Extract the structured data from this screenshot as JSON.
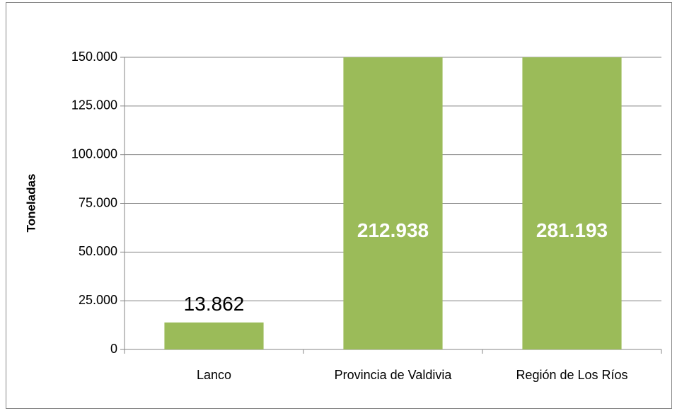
{
  "chart_data": {
    "type": "bar",
    "y_label": "Toneladas",
    "categories": [
      "Lanco",
      "Provincia de Valdivia",
      "Región de Los Ríos"
    ],
    "values": [
      13862,
      212938,
      281193
    ],
    "value_labels": [
      "13.862",
      "212.938",
      "281.193"
    ],
    "color": "#9bbb59",
    "ylim": [
      0,
      150000
    ],
    "yticks": [
      0,
      {
        "value": 25000,
        "label": "25.000"
      },
      {
        "value": 50000,
        "label": "50.000"
      },
      {
        "value": 75000,
        "label": "75.000"
      },
      {
        "value": 100000,
        "label": "100.000"
      },
      {
        "value": 125000,
        "label": "125.000"
      },
      {
        "value": 150000,
        "label": "150.000"
      }
    ],
    "grid": true
  }
}
